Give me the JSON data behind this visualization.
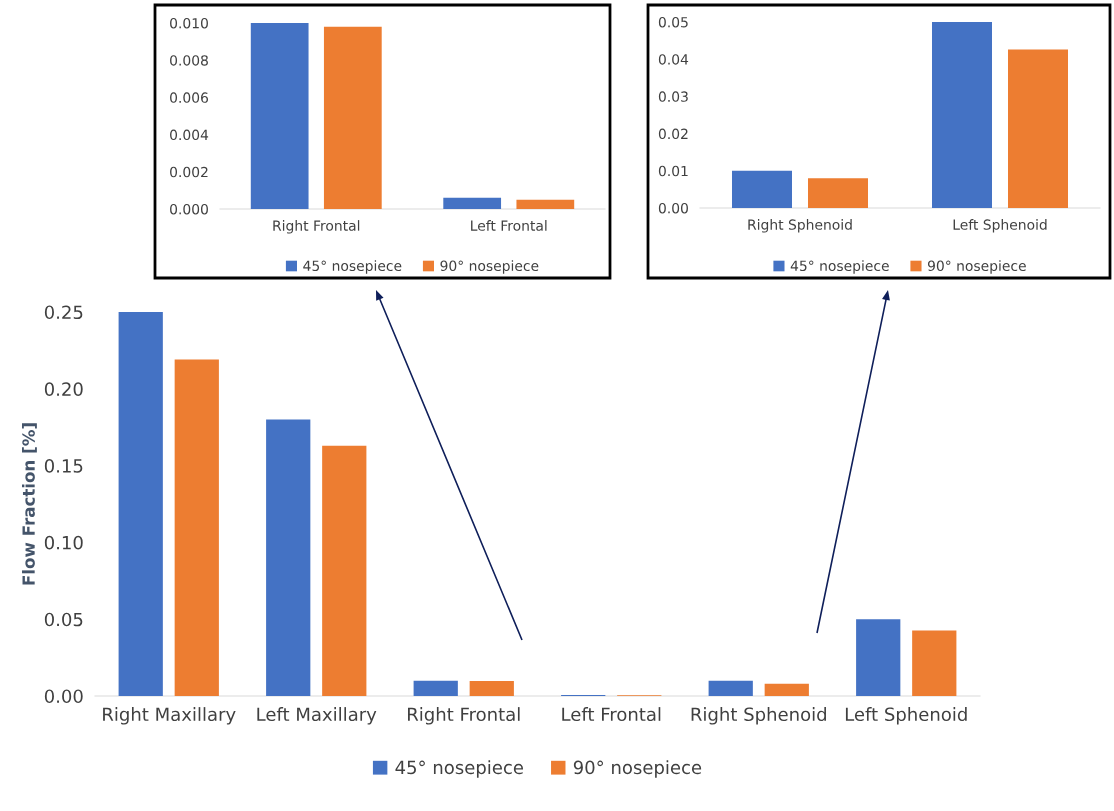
{
  "chart_data": [
    {
      "type": "bar",
      "categories": [
        "Right Frontal",
        "Left Frontal"
      ],
      "series": [
        {
          "name": "45° nosepiece",
          "color": "#4472c4",
          "values": [
            0.01,
            0.0006
          ]
        },
        {
          "name": "90° nosepiece",
          "color": "#ed7d31",
          "values": [
            0.0098,
            0.0005
          ]
        }
      ],
      "ylim": [
        0,
        0.01
      ],
      "yticks": [
        {
          "value": 0,
          "label": "0.000"
        },
        {
          "value": 0.002,
          "label": "0.002"
        },
        {
          "value": 0.004,
          "label": "0.004"
        },
        {
          "value": 0.006,
          "label": "0.006"
        },
        {
          "value": 0.008,
          "label": "0.008"
        },
        {
          "value": 0.01,
          "label": "0.010"
        }
      ],
      "legend": "bottom"
    },
    {
      "type": "bar",
      "categories": [
        "Right Sphenoid",
        "Left Sphenoid"
      ],
      "series": [
        {
          "name": "45° nosepiece",
          "color": "#4472c4",
          "values": [
            0.01,
            0.05
          ]
        },
        {
          "name": "90° nosepiece",
          "color": "#ed7d31",
          "values": [
            0.008,
            0.0426
          ]
        }
      ],
      "ylim": [
        0,
        0.05
      ],
      "yticks": [
        {
          "value": 0,
          "label": "0.00"
        },
        0.01,
        0.02,
        0.03,
        0.04,
        0.05
      ],
      "legend": "bottom"
    },
    {
      "type": "bar",
      "ylabel": "Flow Fraction [%]",
      "categories": [
        "Right Maxillary",
        "Left Maxillary",
        "Right Frontal",
        "Left Frontal",
        "Right Sphenoid",
        "Left Sphenoid"
      ],
      "series": [
        {
          "name": "45° nosepiece",
          "color": "#4472c4",
          "values": [
            0.25,
            0.18,
            0.01,
            0.0006,
            0.01,
            0.05
          ]
        },
        {
          "name": "90° nosepiece",
          "color": "#ed7d31",
          "values": [
            0.219,
            0.163,
            0.0098,
            0.0005,
            0.008,
            0.0426
          ]
        }
      ],
      "ylim": [
        0,
        0.25
      ],
      "yticks": [
        {
          "value": 0,
          "label": "0.00"
        },
        0.05,
        {
          "value": 0.1,
          "label": "0.10"
        },
        0.15,
        {
          "value": 0.2,
          "label": "0.20"
        },
        0.25
      ],
      "legend": "bottom"
    }
  ]
}
